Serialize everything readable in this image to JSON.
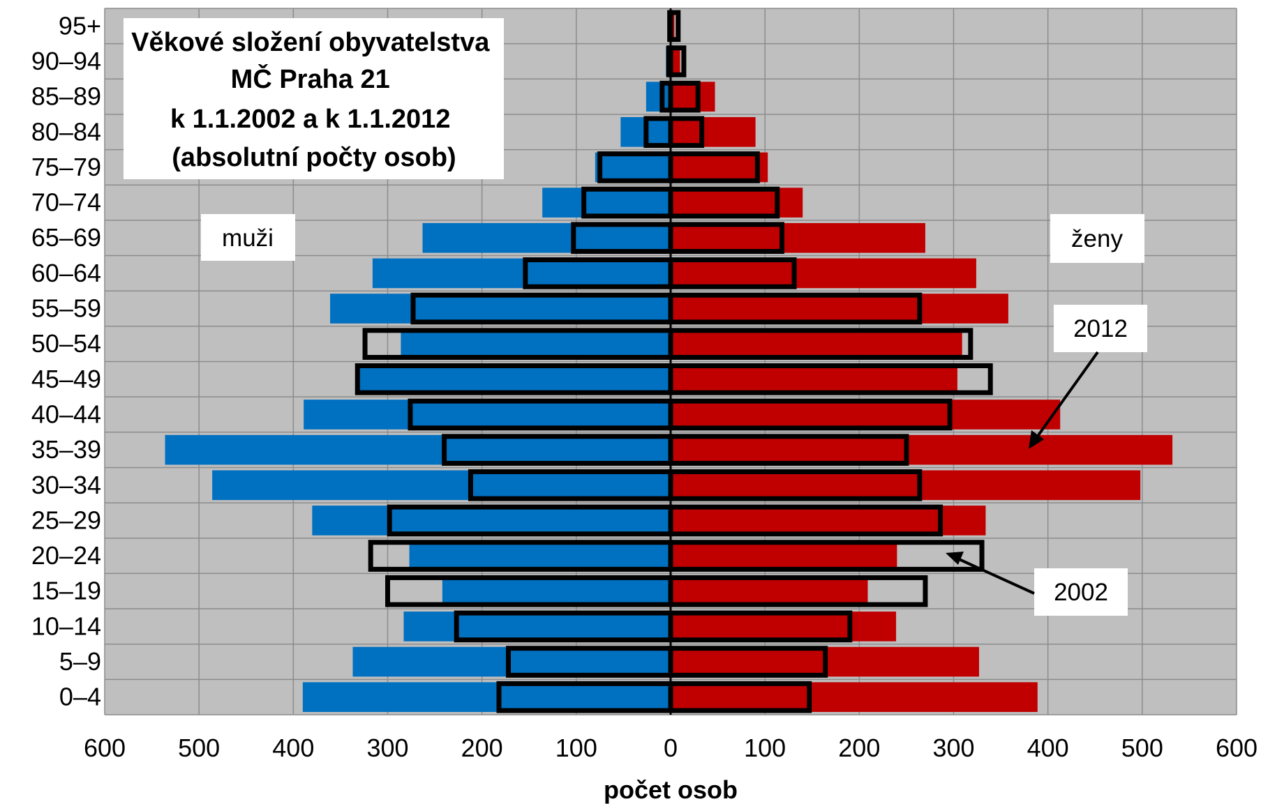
{
  "chart_data": {
    "type": "bar",
    "subtype": "population-pyramid",
    "title_lines": [
      "Věkové složení obyvatelstva",
      "MČ Praha 21",
      "k 1.1.2002 a k 1.1.2012",
      "(absolutní počty osob)"
    ],
    "xlabel": "počet osob",
    "xlim": [
      -600,
      600
    ],
    "x_ticks": [
      -600,
      -500,
      -400,
      -300,
      -200,
      -100,
      0,
      100,
      200,
      300,
      400,
      500,
      600
    ],
    "x_tick_labels": [
      "600",
      "500",
      "400",
      "300",
      "200",
      "100",
      "0",
      "100",
      "200",
      "300",
      "400",
      "500",
      "600"
    ],
    "categories": [
      "0–4",
      "5–9",
      "10–14",
      "15–19",
      "20–24",
      "25–29",
      "30–34",
      "35–39",
      "40–44",
      "45–49",
      "50–54",
      "55–59",
      "60–64",
      "65–69",
      "70–74",
      "75–79",
      "80–84",
      "85–89",
      "90–94",
      "95+"
    ],
    "left_label": "muži",
    "right_label": "ženy",
    "grid": true,
    "series": [
      {
        "name": "2012",
        "side": "muži",
        "color": "#0070C0",
        "values": [
          390,
          337,
          283,
          242,
          277,
          380,
          486,
          536,
          389,
          330,
          286,
          361,
          316,
          263,
          136,
          80,
          53,
          26,
          5,
          3
        ]
      },
      {
        "name": "2012",
        "side": "ženy",
        "color": "#C00000",
        "values": [
          389,
          327,
          239,
          209,
          240,
          334,
          498,
          532,
          413,
          304,
          309,
          358,
          324,
          270,
          140,
          103,
          90,
          47,
          10,
          4
        ]
      },
      {
        "name": "2002",
        "side": "muži",
        "style": "black-outline",
        "values": [
          182,
          172,
          227,
          300,
          318,
          298,
          212,
          240,
          276,
          332,
          324,
          273,
          154,
          103,
          92,
          75,
          26,
          9,
          2,
          1
        ]
      },
      {
        "name": "2002",
        "side": "ženy",
        "style": "black-outline",
        "values": [
          147,
          164,
          190,
          270,
          330,
          286,
          264,
          250,
          296,
          339,
          318,
          264,
          131,
          118,
          113,
          92,
          33,
          29,
          14,
          8
        ]
      }
    ],
    "annotations": [
      "2012",
      "2002"
    ]
  }
}
